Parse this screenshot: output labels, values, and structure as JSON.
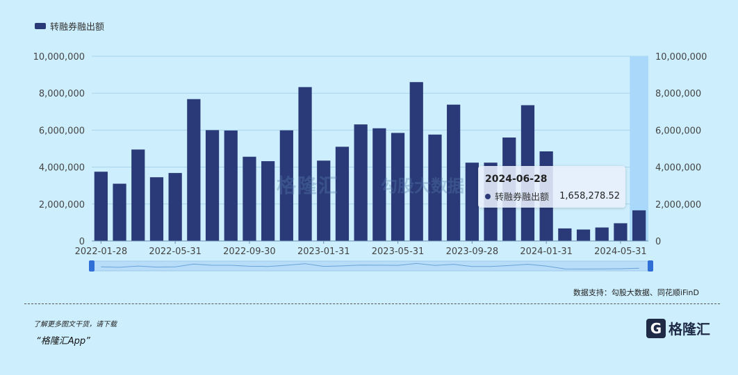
{
  "legend": {
    "label": "转融券融出额"
  },
  "chart_data": {
    "type": "bar",
    "series": [
      {
        "name": "转融券融出额",
        "color": "#2a3a78",
        "values": [
          3750000,
          3100000,
          4950000,
          3450000,
          3680000,
          7680000,
          6000000,
          5980000,
          4560000,
          4320000,
          5990000,
          8330000,
          4350000,
          5100000,
          6310000,
          6100000,
          5850000,
          8600000,
          5760000,
          7380000,
          4240000,
          4240000,
          5600000,
          7350000,
          4850000,
          680000,
          620000,
          730000,
          960000,
          1658278.52
        ]
      }
    ],
    "x_tick_labels": [
      "2022-01-28",
      "2022-05-31",
      "2022-09-30",
      "2023-01-31",
      "2023-05-31",
      "2023-09-28",
      "2024-01-31",
      "2024-05-31"
    ],
    "y_tick_labels": [
      "0",
      "2,000,000",
      "4,000,000",
      "6,000,000",
      "8,000,000",
      "10,000,000"
    ],
    "ylim": [
      0,
      10000000
    ],
    "grid": true,
    "legend_position": "top-left",
    "highlight_index": 29
  },
  "tooltip": {
    "date": "2024-06-28",
    "label": "转融券融出额",
    "value": "1,658,278.52"
  },
  "watermark": {
    "brand": "格隆汇",
    "text": "勾股大数据"
  },
  "source": "数据支持：勾股大数据、同花顺iFinD",
  "promo": {
    "line1": "了解更多图文干货，请下载",
    "line2": "“格隆汇App”"
  },
  "logo": {
    "mark": "G",
    "text": "格隆汇"
  },
  "colors": {
    "background": "#cdeefc",
    "bar": "#2a3a78",
    "highlight": "#a9d8fb",
    "grid": "#a7d3ea"
  }
}
